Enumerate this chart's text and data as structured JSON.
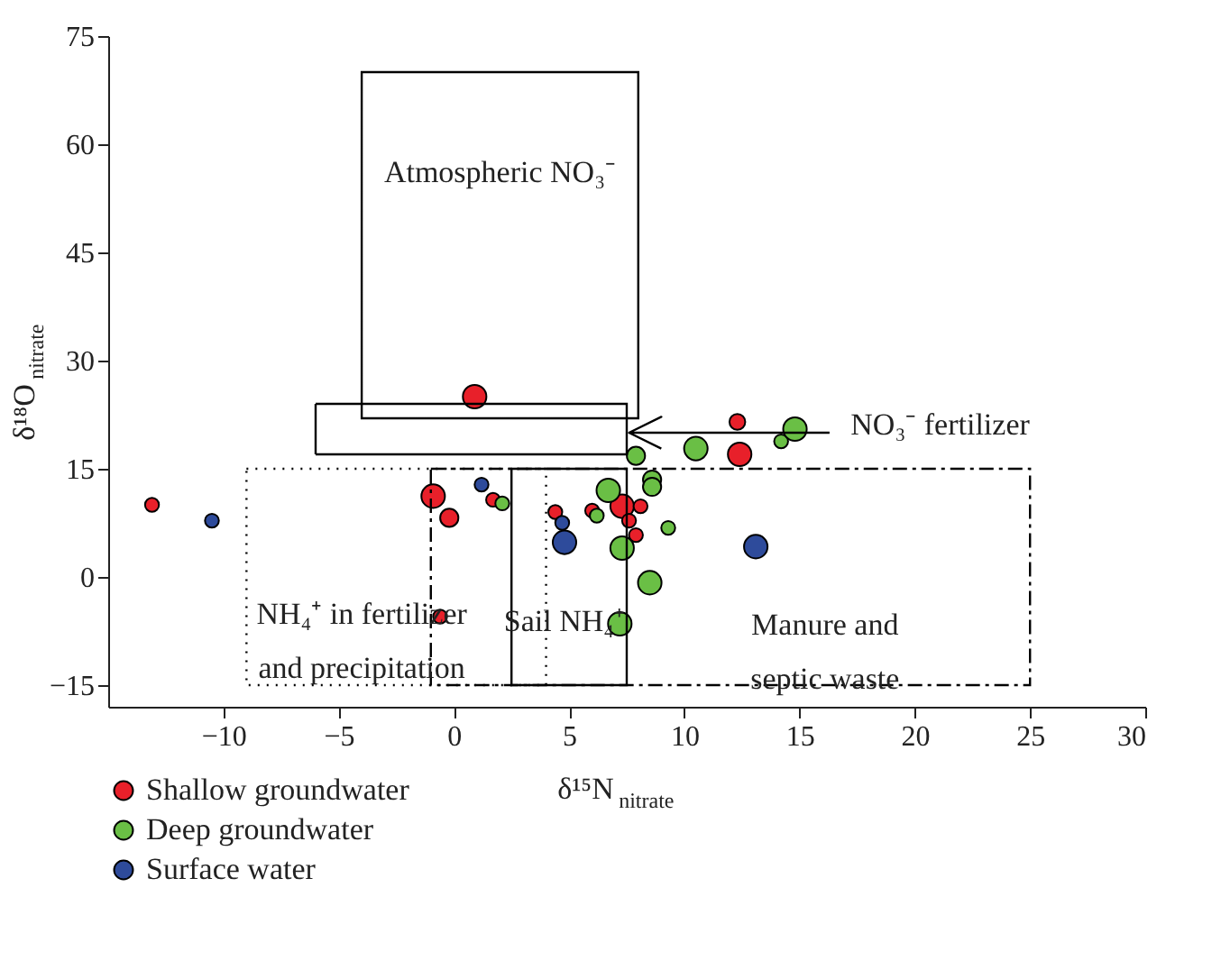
{
  "chart_data": {
    "type": "bubble",
    "xlabel": "δ¹⁵N$_{nitrate}$",
    "ylabel": "δ¹⁸O$_{nitrate}$",
    "xlim": [
      -15,
      30
    ],
    "ylim": [
      -18,
      75
    ],
    "xticks": [
      -10,
      -5,
      0,
      5,
      10,
      15,
      20,
      25,
      30
    ],
    "yticks": [
      -15,
      0,
      15,
      30,
      45,
      60,
      75
    ],
    "grid": false,
    "legend": "bottom",
    "marker": "circle",
    "series": [
      {
        "name": "Shallow groundwater",
        "color": "#e8202a",
        "x": [
          0.9,
          -13.1,
          -0.9,
          -0.2,
          1.7,
          -0.6,
          4.4,
          6.0,
          7.3,
          8.1,
          7.6,
          7.9,
          12.3,
          12.4
        ],
        "values": [
          25,
          10,
          11.2,
          8.2,
          10.7,
          -5.5,
          9,
          9.2,
          9.8,
          9.8,
          7.8,
          5.8,
          21.5,
          17
        ],
        "sizes": [
          1,
          0.35,
          1,
          0.6,
          0.35,
          0.35,
          0.35,
          0.35,
          1,
          0.35,
          0.35,
          0.35,
          0.45,
          1
        ]
      },
      {
        "name": "Deep groundwater",
        "color": "#6abf45",
        "x": [
          2.1,
          6.7,
          6.2,
          7.3,
          8.5,
          7.2,
          9.3,
          8.6,
          8.6,
          7.9,
          10.5,
          14.2,
          14.8
        ],
        "values": [
          10.2,
          12,
          8.5,
          4,
          -0.8,
          -6.5,
          6.8,
          13.5,
          12.5,
          16.8,
          17.8,
          18.8,
          20.5
        ],
        "sizes": [
          0.35,
          1,
          0.35,
          1,
          1,
          1,
          0.35,
          0.6,
          0.6,
          0.6,
          1,
          0.35,
          1
        ]
      },
      {
        "name": "Surface water",
        "color": "#2e4b9b",
        "x": [
          -10.5,
          1.2,
          4.7,
          4.8,
          13.1
        ],
        "values": [
          7.8,
          12.8,
          7.5,
          4.8,
          4.2
        ],
        "sizes": [
          0.35,
          0.35,
          0.35,
          1,
          1
        ]
      }
    ],
    "annotations": [
      "Atmospheric NO₃⁻",
      "NO₃⁻ fertilizer",
      "NH₄⁺ in fertilizer\nand precipitation",
      "Sail NH₄⁺",
      "Manure and\nseptic waste"
    ]
  }
}
